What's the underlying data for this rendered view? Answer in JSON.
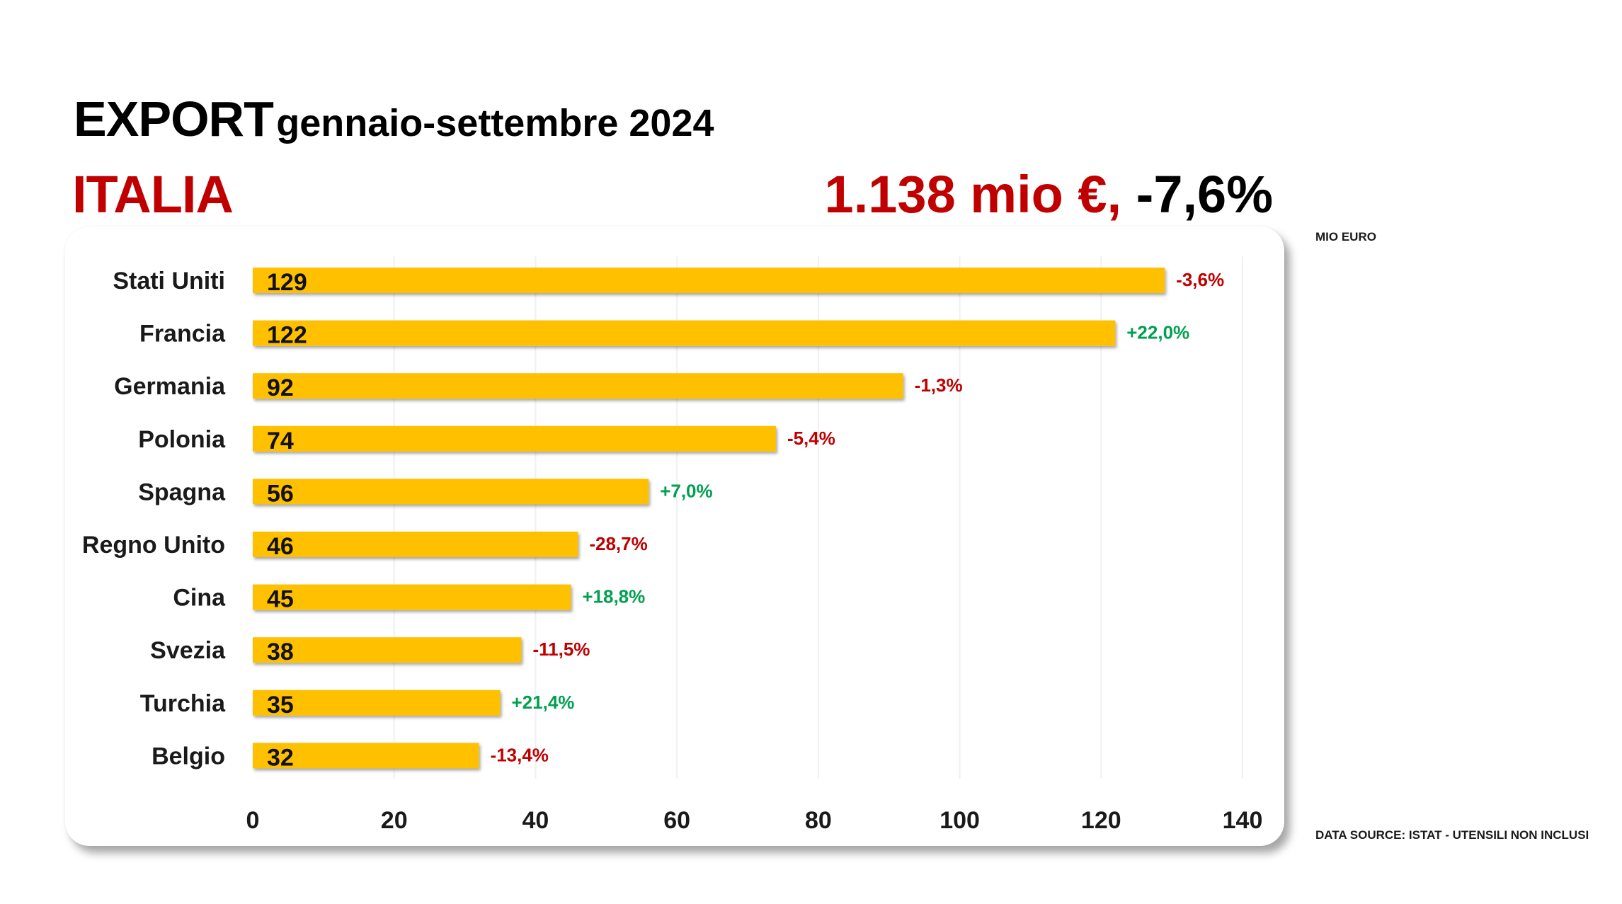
{
  "header": {
    "title": "EXPORT",
    "subtitle": "gennaio-settembre 2024",
    "country": "ITALIA",
    "total_value": "1.138 mio €,",
    "total_change": " -7,6%"
  },
  "unit_label": "MIO EURO",
  "source_note": "DATA SOURCE: ISTAT - UTENSILI NON INCLUSI",
  "colors": {
    "bar": "#ffc000",
    "negative": "#c00000",
    "positive": "#00a050",
    "accent": "#c00000"
  },
  "chart_data": {
    "type": "bar",
    "orientation": "horizontal",
    "categories": [
      "Stati Uniti",
      "Francia",
      "Germania",
      "Polonia",
      "Spagna",
      "Regno Unito",
      "Cina",
      "Svezia",
      "Turchia",
      "Belgio"
    ],
    "values": [
      129,
      122,
      92,
      74,
      56,
      46,
      45,
      38,
      35,
      32
    ],
    "value_labels": [
      "129",
      "122",
      "92",
      "74",
      "56",
      "46",
      "45",
      "38",
      "35",
      "32"
    ],
    "changes": [
      "-3,6%",
      "+22,0%",
      "-1,3%",
      "-5,4%",
      "+7,0%",
      "-28,7%",
      "+18,8%",
      "-11,5%",
      "+21,4%",
      "-13,4%"
    ],
    "xlim": [
      0,
      140
    ],
    "xticks": [
      0,
      20,
      40,
      60,
      80,
      100,
      120,
      140
    ],
    "grid": true
  }
}
